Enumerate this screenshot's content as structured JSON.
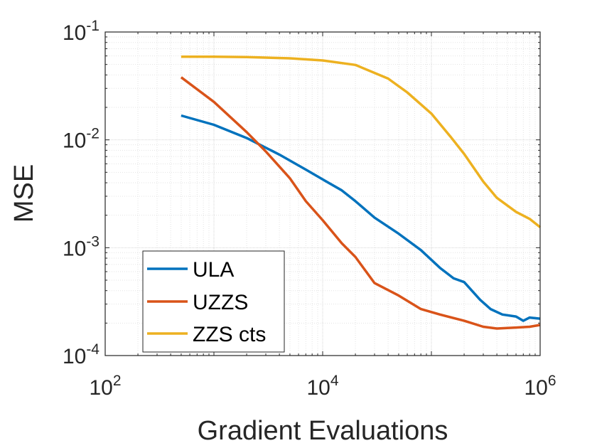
{
  "chart_data": {
    "type": "line",
    "xscale": "log",
    "yscale": "log",
    "xlabel": "Gradient Evaluations",
    "ylabel": "MSE",
    "xlim": [
      100,
      1000000
    ],
    "ylim": [
      0.0001,
      0.1
    ],
    "grid": "on (major and minor)",
    "legend_position": "bottom-left",
    "xticks": [
      {
        "value": 100,
        "base": "10",
        "exp": "2"
      },
      {
        "value": 10000,
        "base": "10",
        "exp": "4"
      },
      {
        "value": 1000000,
        "base": "10",
        "exp": "6"
      }
    ],
    "yticks": [
      {
        "value": 0.1,
        "base": "10",
        "exp": "-1"
      },
      {
        "value": 0.01,
        "base": "10",
        "exp": "-2"
      },
      {
        "value": 0.001,
        "base": "10",
        "exp": "-3"
      },
      {
        "value": 0.0001,
        "base": "10",
        "exp": "-4"
      }
    ],
    "series": [
      {
        "name": "ULA",
        "color": "#0072BD",
        "x": [
          500,
          1000,
          2000,
          4000,
          7000,
          10000,
          15000,
          20000,
          30000,
          50000,
          80000,
          120000,
          160000,
          200000,
          280000,
          350000,
          450000,
          600000,
          700000,
          800000,
          1000000
        ],
        "y": [
          0.0168,
          0.0138,
          0.0104,
          0.0073,
          0.0053,
          0.0043,
          0.0034,
          0.0027,
          0.0019,
          0.00135,
          0.00095,
          0.00065,
          0.00052,
          0.00048,
          0.00033,
          0.00027,
          0.00024,
          0.00023,
          0.00021,
          0.000225,
          0.00022
        ]
      },
      {
        "name": "UZZS",
        "color": "#D95319",
        "x": [
          500,
          1000,
          2000,
          3000,
          5000,
          7000,
          10000,
          15000,
          20000,
          30000,
          50000,
          80000,
          120000,
          200000,
          300000,
          400000,
          600000,
          800000,
          1000000
        ],
        "y": [
          0.038,
          0.0225,
          0.0118,
          0.0078,
          0.0044,
          0.0027,
          0.0018,
          0.0011,
          0.00082,
          0.00047,
          0.00036,
          0.00027,
          0.00024,
          0.00021,
          0.000185,
          0.000178,
          0.000182,
          0.000185,
          0.000192
        ]
      },
      {
        "name": "ZZS cts",
        "color": "#EDB120",
        "x": [
          500,
          1000,
          2000,
          5000,
          10000,
          20000,
          40000,
          60000,
          100000,
          150000,
          200000,
          300000,
          400000,
          600000,
          800000,
          1000000
        ],
        "y": [
          0.059,
          0.059,
          0.0585,
          0.057,
          0.0545,
          0.0495,
          0.037,
          0.0275,
          0.0175,
          0.0107,
          0.0074,
          0.0041,
          0.0029,
          0.00215,
          0.00185,
          0.00155
        ]
      }
    ]
  }
}
